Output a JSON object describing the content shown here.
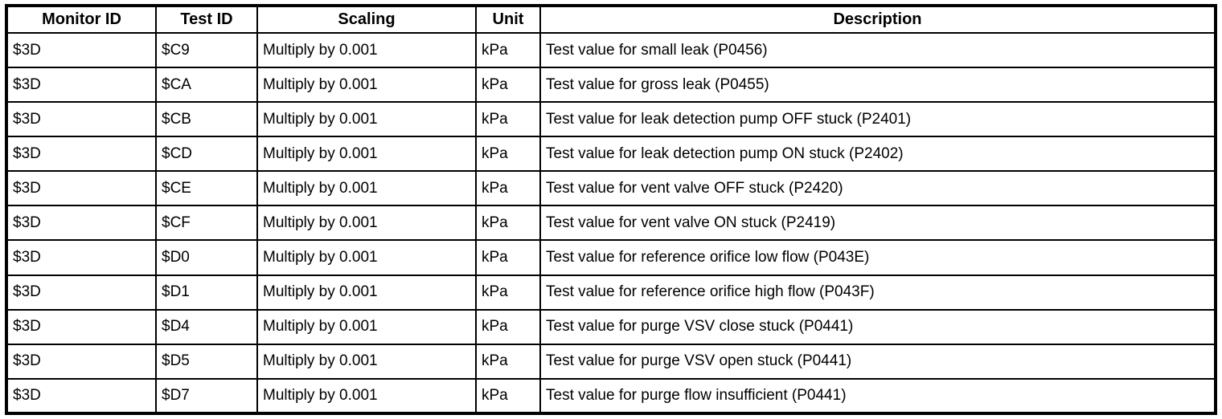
{
  "table": {
    "columns": [
      "Monitor ID",
      "Test ID",
      "Scaling",
      "Unit",
      "Description"
    ],
    "rows": [
      [
        "$3D",
        "$C9",
        "Multiply by 0.001",
        "kPa",
        "Test value for small leak (P0456)"
      ],
      [
        "$3D",
        "$CA",
        "Multiply by 0.001",
        "kPa",
        "Test value for gross leak (P0455)"
      ],
      [
        "$3D",
        "$CB",
        "Multiply by 0.001",
        "kPa",
        "Test value for leak detection pump OFF stuck (P2401)"
      ],
      [
        "$3D",
        "$CD",
        "Multiply by 0.001",
        "kPa",
        "Test value for leak detection pump ON stuck (P2402)"
      ],
      [
        "$3D",
        "$CE",
        "Multiply by 0.001",
        "kPa",
        "Test value for vent valve OFF stuck (P2420)"
      ],
      [
        "$3D",
        "$CF",
        "Multiply by 0.001",
        "kPa",
        "Test value for vent valve ON stuck (P2419)"
      ],
      [
        "$3D",
        "$D0",
        "Multiply by 0.001",
        "kPa",
        "Test value for reference orifice low flow (P043E)"
      ],
      [
        "$3D",
        "$D1",
        "Multiply by 0.001",
        "kPa",
        "Test value for reference orifice high flow (P043F)"
      ],
      [
        "$3D",
        "$D4",
        "Multiply by 0.001",
        "kPa",
        "Test value for purge VSV close stuck (P0441)"
      ],
      [
        "$3D",
        "$D5",
        "Multiply by 0.001",
        "kPa",
        "Test value for purge VSV open stuck (P0441)"
      ],
      [
        "$3D",
        "$D7",
        "Multiply by 0.001",
        "kPa",
        "Test value for purge flow insufficient (P0441)"
      ]
    ],
    "colors": {
      "border": "#000000",
      "background": "#ffffff",
      "text": "#000000"
    }
  }
}
